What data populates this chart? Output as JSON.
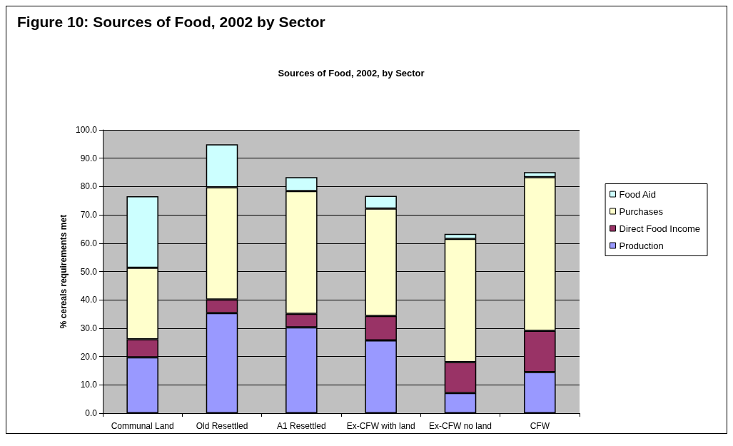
{
  "chart_data": {
    "type": "bar",
    "title": "Figure 10: Sources of Food, 2002 by Sector",
    "subtitle": "Sources of Food, 2002, by Sector",
    "ylabel": "% cereals requirements met",
    "categories": [
      "Communal Land",
      "Old Resettled",
      "A1 Resettled",
      "Ex-CFW with land",
      "Ex-CFW no land",
      "CFW"
    ],
    "stacked": true,
    "series": [
      {
        "name": "Production",
        "color": "#9999ff",
        "values": [
          19.7,
          35.3,
          30.3,
          25.7,
          7.1,
          14.5
        ]
      },
      {
        "name": "Direct Food Income",
        "color": "#993366",
        "values": [
          6.4,
          4.8,
          4.8,
          8.6,
          10.9,
          14.6
        ]
      },
      {
        "name": "Purchases",
        "color": "#ffffcc",
        "values": [
          25.2,
          39.6,
          43.3,
          37.9,
          43.5,
          54.2
        ]
      },
      {
        "name": "Food Aid",
        "color": "#ccffff",
        "values": [
          25.3,
          15.2,
          4.9,
          4.5,
          1.8,
          1.8
        ]
      }
    ],
    "ylim": [
      0,
      100
    ],
    "yticks": [
      {
        "value": 0,
        "label": "0.0"
      },
      {
        "value": 10,
        "label": "10.0"
      },
      {
        "value": 20,
        "label": "20.0"
      },
      {
        "value": 30,
        "label": "30.0"
      },
      {
        "value": 40,
        "label": "40.0"
      },
      {
        "value": 50,
        "label": "50.0"
      },
      {
        "value": 60,
        "label": "60.0"
      },
      {
        "value": 70,
        "label": "70.0"
      },
      {
        "value": 80,
        "label": "80.0"
      },
      {
        "value": 90,
        "label": "90.0"
      },
      {
        "value": 100,
        "label": "100.0"
      }
    ],
    "grid": "y",
    "legend": "right"
  }
}
